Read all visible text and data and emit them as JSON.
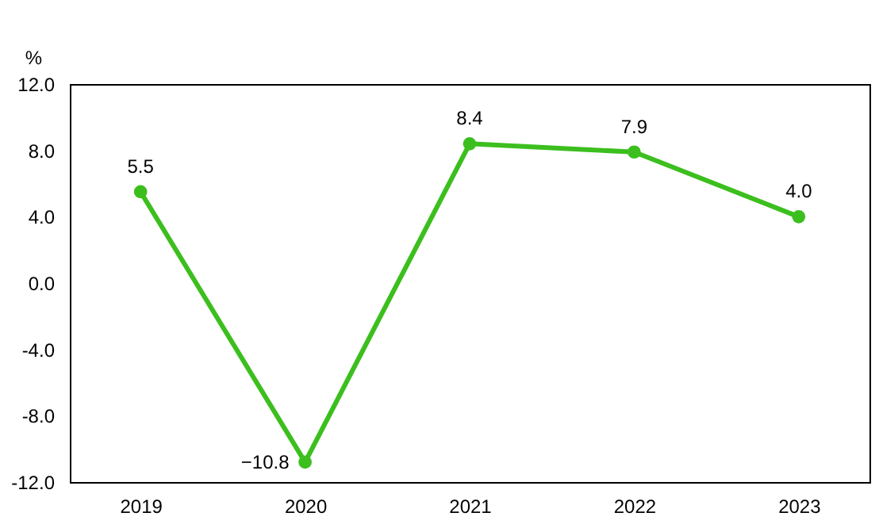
{
  "chart_data": {
    "type": "line",
    "ylabel": "%",
    "categories": [
      "2019",
      "2020",
      "2021",
      "2022",
      "2023"
    ],
    "series": [
      {
        "color": "#3cbf1e",
        "values": [
          5.5,
          -10.8,
          8.4,
          7.9,
          4.0
        ],
        "value_labels": [
          "5.5",
          "−10.8",
          "8.4",
          "7.9",
          "4.0"
        ]
      }
    ],
    "ylim": [
      -12,
      12
    ],
    "yticks": [
      {
        "value": 12,
        "label": "12.0"
      },
      {
        "value": 8,
        "label": "8.0"
      },
      {
        "value": 4,
        "label": "4.0"
      },
      {
        "value": 0,
        "label": "0.0"
      },
      {
        "value": -4,
        "label": "-4.0"
      },
      {
        "value": -8,
        "label": "-8.0"
      },
      {
        "value": -12,
        "label": "-12.0"
      }
    ],
    "marker": "circle",
    "line_style": "solid",
    "grid": false
  }
}
